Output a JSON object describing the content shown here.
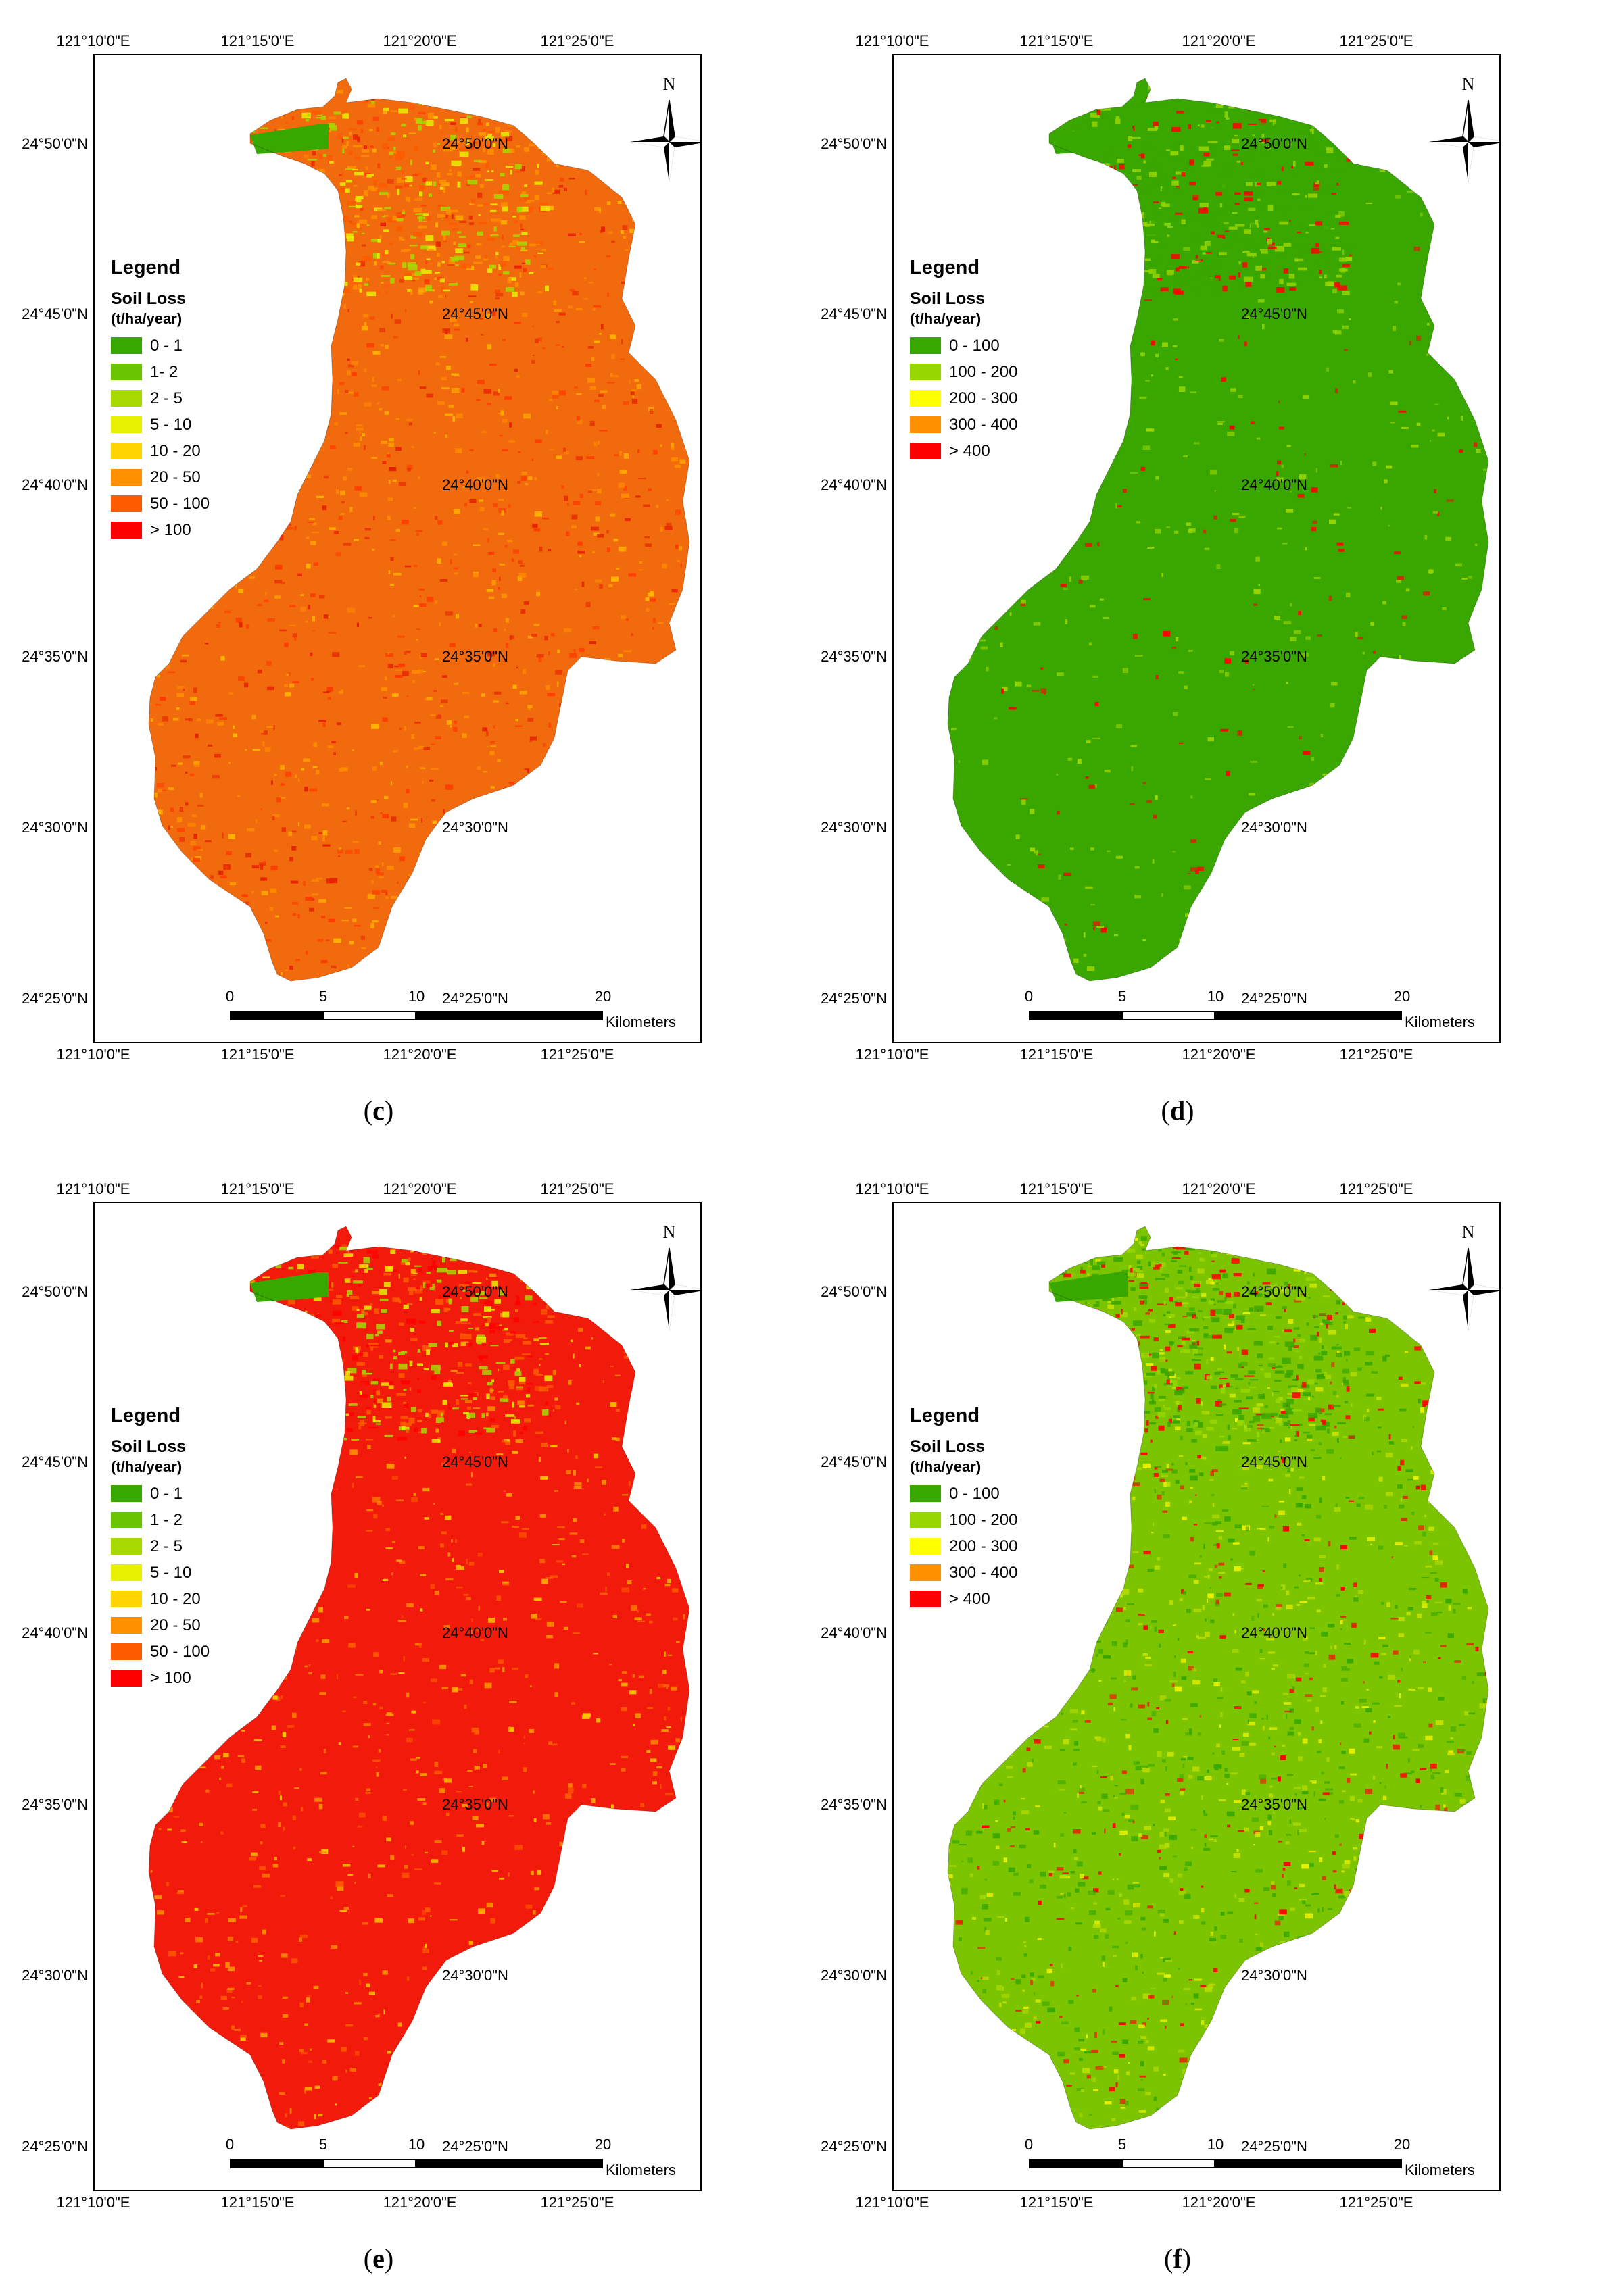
{
  "panels": [
    {
      "id": "c",
      "caption_open": "(",
      "caption_letter": "c",
      "caption_close": ")",
      "legend": {
        "title": "Legend",
        "subtitle": "Soil Loss",
        "unit": "(t/ha/year)",
        "items": [
          {
            "label": "0 - 1",
            "color": "#38a800"
          },
          {
            "label": "1- 2",
            "color": "#6bc400"
          },
          {
            "label": "2 - 5",
            "color": "#a7d900"
          },
          {
            "label": "5 - 10",
            "color": "#e6f000"
          },
          {
            "label": "10 - 20",
            "color": "#ffd500"
          },
          {
            "label": "20 - 50",
            "color": "#ff9100"
          },
          {
            "label": "50 - 100",
            "color": "#ff5a00"
          },
          {
            "label": "> 100",
            "color": "#ff0000"
          }
        ]
      },
      "dominant_fill": "#f26a0e",
      "speckle_colors": [
        "#ff3a00",
        "#ffb300",
        "#ff8c00",
        "#e62200"
      ],
      "speckle_density": 0.7,
      "northern_fill": [
        "#ff9100",
        "#a7d900",
        "#e6f000",
        "#ff5a00"
      ]
    },
    {
      "id": "d",
      "caption_open": "(",
      "caption_letter": "d",
      "caption_close": ")",
      "legend": {
        "title": "Legend",
        "subtitle": "Soil Loss",
        "unit": "(t/ha/year)",
        "items": [
          {
            "label": "0 - 100",
            "color": "#38a800"
          },
          {
            "label": "100 - 200",
            "color": "#98d600"
          },
          {
            "label": "200 - 300",
            "color": "#ffff00"
          },
          {
            "label": "300 - 400",
            "color": "#ff9100"
          },
          {
            "label": "> 400",
            "color": "#ff0000"
          }
        ]
      },
      "dominant_fill": "#3aa600",
      "speckle_colors": [
        "#98d600",
        "#ff0000",
        "#98d600"
      ],
      "speckle_density": 0.25,
      "northern_fill": [
        "#3aa600",
        "#3aa600",
        "#98d600",
        "#ff0000"
      ]
    },
    {
      "id": "e",
      "caption_open": "(",
      "caption_letter": "e",
      "caption_close": ")",
      "legend": {
        "title": "Legend",
        "subtitle": "Soil Loss",
        "unit": "(t/ha/year)",
        "items": [
          {
            "label": "0 - 1",
            "color": "#38a800"
          },
          {
            "label": "1 - 2",
            "color": "#6bc400"
          },
          {
            "label": "2 - 5",
            "color": "#a7d900"
          },
          {
            "label": "5 - 10",
            "color": "#e6f000"
          },
          {
            "label": "10 - 20",
            "color": "#ffd500"
          },
          {
            "label": "20 - 50",
            "color": "#ff9100"
          },
          {
            "label": "50 - 100",
            "color": "#ff5a00"
          },
          {
            "label": "> 100",
            "color": "#ff0000"
          }
        ]
      },
      "dominant_fill": "#f21a0a",
      "speckle_colors": [
        "#ff8c00",
        "#ffc400",
        "#ff5a00"
      ],
      "speckle_density": 0.45,
      "northern_fill": [
        "#ff0000",
        "#a7d900",
        "#e6f000",
        "#ff5a00"
      ]
    },
    {
      "id": "f",
      "caption_open": "(",
      "caption_letter": "f",
      "caption_close": ")",
      "legend": {
        "title": "Legend",
        "subtitle": "Soil Loss",
        "unit": "(t/ha/year)",
        "items": [
          {
            "label": "0 - 100",
            "color": "#38a800"
          },
          {
            "label": "100 - 200",
            "color": "#98d600"
          },
          {
            "label": "200 - 300",
            "color": "#ffff00"
          },
          {
            "label": "300 - 400",
            "color": "#ff9100"
          },
          {
            "label": "> 400",
            "color": "#ff0000"
          }
        ]
      },
      "dominant_fill": "#7cc400",
      "speckle_colors": [
        "#38a800",
        "#e8f000",
        "#ff0000",
        "#38a800",
        "#b8dc00"
      ],
      "speckle_density": 0.9,
      "northern_fill": [
        "#3aa600",
        "#98d600",
        "#3aa600",
        "#ff0000"
      ]
    }
  ],
  "graticule": {
    "top_labels": [
      "121°10'0\"E",
      "121°15'0\"E",
      "121°20'0\"E",
      "121°25'0\"E"
    ],
    "bottom_labels": [
      "121°10'0\"E",
      "121°15'0\"E",
      "121°20'0\"E",
      "121°25'0\"E"
    ],
    "left_labels": [
      "24°50'0\"N",
      "24°45'0\"N",
      "24°40'0\"N",
      "24°35'0\"N",
      "24°30'0\"N",
      "24°25'0\"N"
    ],
    "right_labels": [
      "24°50'0\"N",
      "24°45'0\"N",
      "24°40'0\"N",
      "24°35'0\"N",
      "24°30'0\"N",
      "24°25'0\"N"
    ]
  },
  "north_arrow": {
    "letter": "N"
  },
  "scale_bar": {
    "ticks": [
      "0",
      "5",
      "10",
      "20"
    ],
    "unit": "Kilometers"
  },
  "reservoir_color": "#38a800",
  "colors": {
    "frame": "#000000",
    "background": "#ffffff"
  }
}
